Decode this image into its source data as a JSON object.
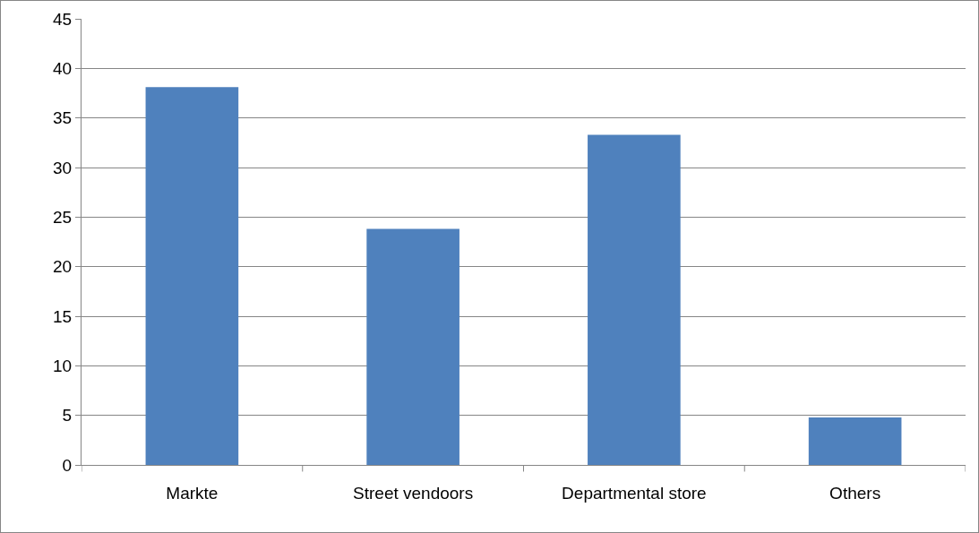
{
  "chart_data": {
    "type": "bar",
    "categories": [
      "Markte",
      "Street vendoors",
      "Departmental store",
      "Others"
    ],
    "values": [
      38.1,
      23.8,
      33.3,
      4.8
    ],
    "color": "#4f81bd",
    "ylim": [
      0,
      45
    ],
    "yticks": [
      0,
      5,
      10,
      15,
      20,
      25,
      30,
      35,
      40,
      45
    ],
    "grid": "y"
  }
}
